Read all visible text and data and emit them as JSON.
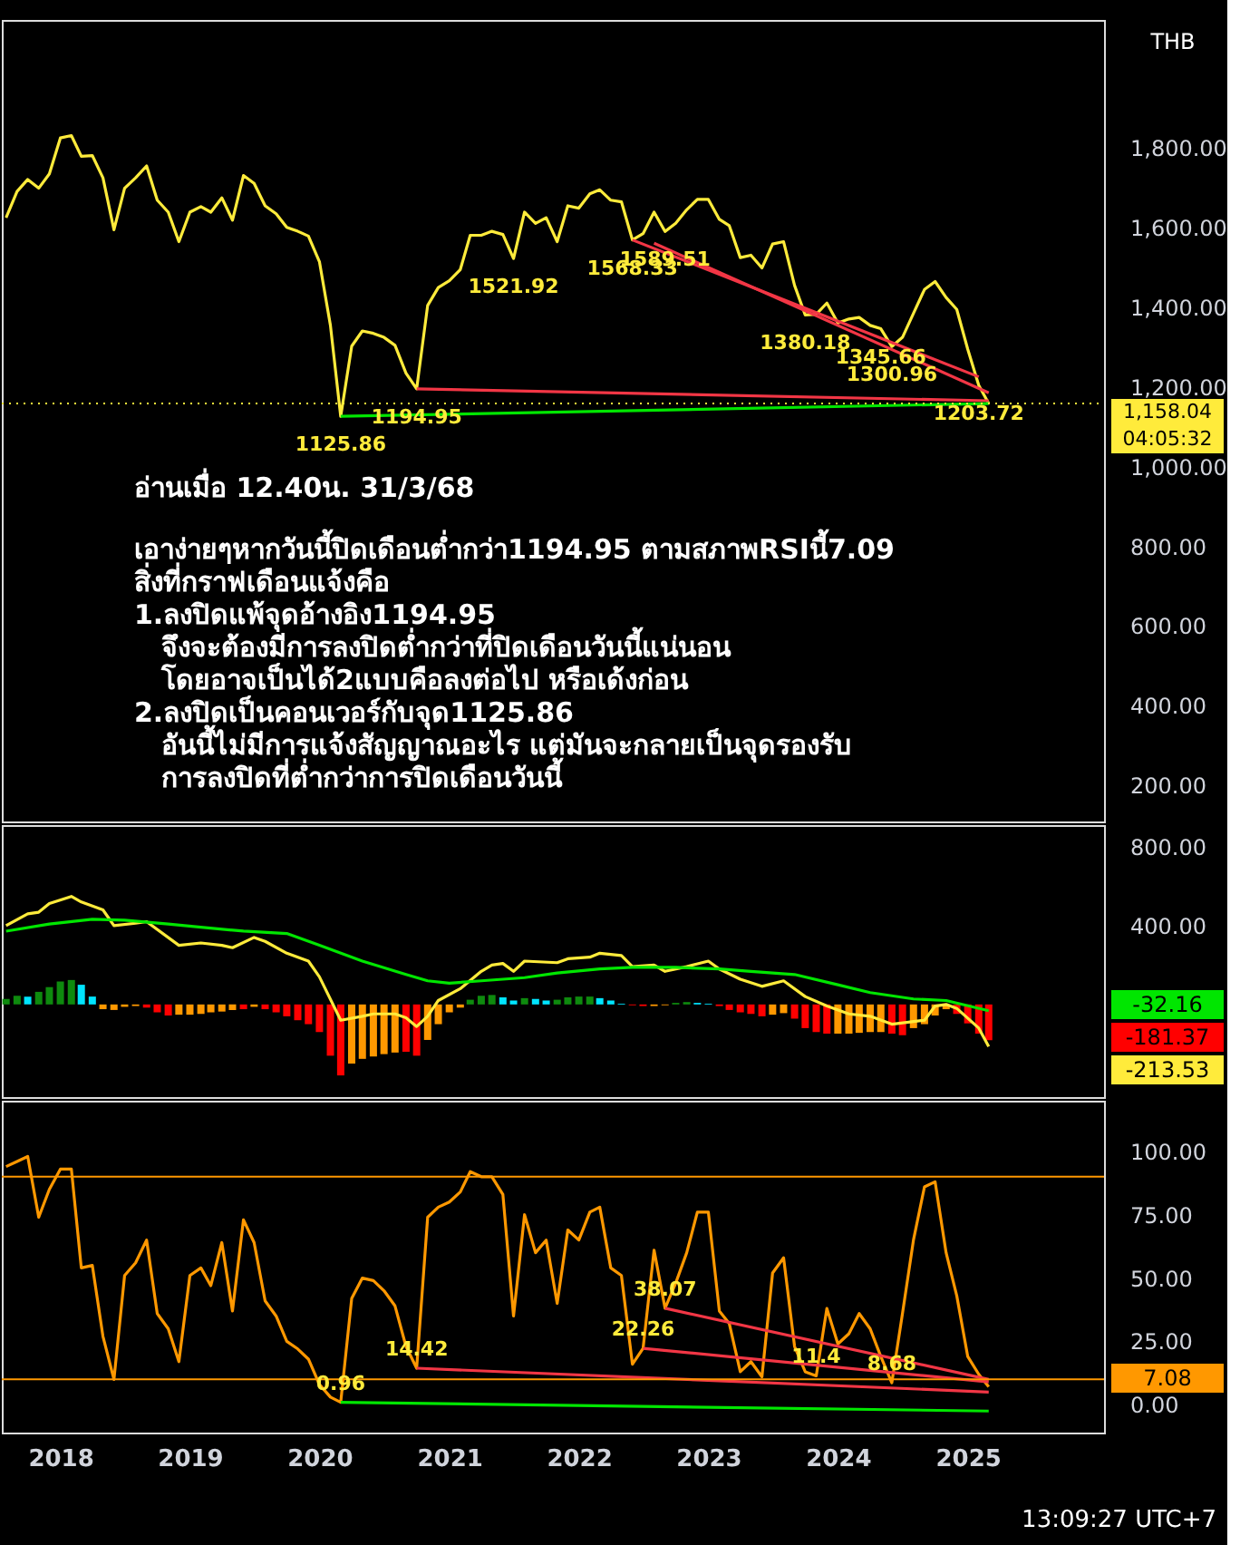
{
  "chart_data": [
    {
      "type": "line",
      "xlim": [
        "2017-07-20",
        "2026-01-20"
      ],
      "ylim": [
        110,
        2120
      ],
      "tick_labels": "y",
      "yticks": [
        {
          "value": 200,
          "label": "200.00"
        },
        {
          "value": 400,
          "label": "400.00"
        },
        {
          "value": 600,
          "label": "600.00"
        },
        {
          "value": 800,
          "label": "800.00"
        },
        {
          "value": 1000,
          "label": "1,000.00"
        },
        {
          "value": 1200,
          "label": "1,200.00"
        },
        {
          "value": 1400,
          "label": "1,400.00"
        },
        {
          "value": 1600,
          "label": "1,600.00"
        },
        {
          "value": 1800,
          "label": "1,800.00"
        }
      ],
      "x": [
        "2017-08",
        "2017-09",
        "2017-10",
        "2017-11",
        "2017-12",
        "2018-01",
        "2018-02",
        "2018-03",
        "2018-04",
        "2018-05",
        "2018-06",
        "2018-07",
        "2018-08",
        "2018-09",
        "2018-10",
        "2018-11",
        "2018-12",
        "2019-01",
        "2019-02",
        "2019-03",
        "2019-04",
        "2019-05",
        "2019-06",
        "2019-07",
        "2019-08",
        "2019-09",
        "2019-10",
        "2019-11",
        "2019-12",
        "2020-01",
        "2020-02",
        "2020-03",
        "2020-04",
        "2020-05",
        "2020-06",
        "2020-07",
        "2020-08",
        "2020-09",
        "2020-10",
        "2020-11",
        "2020-12",
        "2021-01",
        "2021-02",
        "2021-03",
        "2021-04",
        "2021-05",
        "2021-06",
        "2021-07",
        "2021-08",
        "2021-09",
        "2021-10",
        "2021-11",
        "2021-12",
        "2022-01",
        "2022-02",
        "2022-03",
        "2022-04",
        "2022-05",
        "2022-06",
        "2022-07",
        "2022-08",
        "2022-09",
        "2022-10",
        "2022-11",
        "2022-12",
        "2023-01",
        "2023-02",
        "2023-03",
        "2023-04",
        "2023-05",
        "2023-06",
        "2023-07",
        "2023-08",
        "2023-09",
        "2023-10",
        "2023-11",
        "2023-12",
        "2024-01",
        "2024-02",
        "2024-03",
        "2024-04",
        "2024-05",
        "2024-06",
        "2024-07",
        "2024-08",
        "2024-09",
        "2024-10",
        "2024-11",
        "2024-12",
        "2025-01",
        "2025-02",
        "2025-03"
      ],
      "series": [
        {
          "color": "#ffeb3b",
          "values": [
            1624,
            1690,
            1720,
            1698,
            1734,
            1824,
            1830,
            1778,
            1780,
            1724,
            1594,
            1698,
            1724,
            1754,
            1668,
            1638,
            1564,
            1638,
            1652,
            1638,
            1674,
            1618,
            1730,
            1710,
            1654,
            1634,
            1600,
            1590,
            1578,
            1514,
            1354,
            1125.86,
            1302,
            1340,
            1334,
            1324,
            1304,
            1234,
            1194.95,
            1404,
            1449,
            1466,
            1494,
            1580,
            1580,
            1590,
            1582,
            1521.92,
            1638,
            1610,
            1624,
            1564,
            1654,
            1648,
            1684,
            1694,
            1668,
            1664,
            1568.33,
            1584,
            1638,
            1589.51,
            1610,
            1644,
            1670,
            1670,
            1620,
            1604,
            1524,
            1530,
            1498,
            1558,
            1564,
            1454,
            1380.18,
            1382,
            1410,
            1360,
            1370,
            1374,
            1354,
            1345.66,
            1300.96,
            1324,
            1384,
            1444,
            1464,
            1424,
            1394,
            1294,
            1203.72,
            1158.04
          ]
        },
        {
          "type": "line",
          "color": "#f23645",
          "x": [
            "2020-10",
            "2025-03"
          ],
          "values": [
            1194.95,
            1165
          ]
        },
        {
          "type": "line",
          "color": "#f23645",
          "x": [
            "2022-06",
            "2025-02"
          ],
          "values": [
            1568.33,
            1225
          ]
        },
        {
          "type": "line",
          "color": "#f23645",
          "x": [
            "2022-08",
            "2025-03"
          ],
          "values": [
            1560,
            1185
          ]
        },
        {
          "type": "line",
          "color": "#00e600",
          "x": [
            "2020-03",
            "2025-03"
          ],
          "values": [
            1125.86,
            1158.04
          ]
        }
      ],
      "ref_lines": [
        {
          "axis": "y",
          "value": 1158.04,
          "label": "1,158.04",
          "color": "#ffeb3b",
          "line_style": "dotted"
        }
      ],
      "annotations": [
        "THB",
        "04:05:32",
        "อ่านเมื่อ 12.40น. 31/3/68",
        "เอาง่ายๆหากวันนี้ปิดเดือนต่ำกว่า1194.95 ตามสภาพRSIนี้7.09",
        "สิ่งที่กราฟเดือนแจ้งคือ",
        "1.ลงปิดแพ้จุดอ้างอิง1194.95",
        "จึงจะต้องมีการลงปิดต่ำกว่าที่ปิดเดือนวันนี้แน่นอน",
        "โดยอาจเป็นได้2แบบคือลงต่อไป หรือเด้งก่อน",
        "2.ลงปิดเป็นคอนเวอร์กับจุด1125.86",
        "อันนี้ไม่มีการแจ้งสัญญาณอะไร แต่มันจะกลายเป็นจุดรองรับ",
        "การลงปิดที่ต่ำกว่าการปิดเดือนวันนี้",
        {
          "text": "1125.86",
          "x": "2020-03",
          "y": 1125.86
        },
        {
          "text": "1194.95",
          "x": "2020-10",
          "y": 1194.95
        },
        {
          "text": "1521.92",
          "x": "2021-07",
          "y": 1521.92
        },
        {
          "text": "1568.33",
          "x": "2022-06",
          "y": 1568.33
        },
        {
          "text": "1589.51",
          "x": "2022-09",
          "y": 1589.51
        },
        {
          "text": "1380.18",
          "x": "2023-10",
          "y": 1380.18
        },
        {
          "text": "1345.66",
          "x": "2024-05",
          "y": 1345.66
        },
        {
          "text": "1300.96",
          "x": "2024-06",
          "y": 1300.96
        },
        {
          "text": "1203.72",
          "x": "2025-02",
          "y": 1203.72
        }
      ]
    },
    {
      "type": "bar",
      "xlim": [
        "2017-07-20",
        "2026-01-20"
      ],
      "ylim": [
        -470,
        910
      ],
      "tick_labels": "y",
      "yticks": [
        {
          "value": 400,
          "label": "400.00"
        },
        {
          "value": 800,
          "label": "800.00"
        }
      ],
      "x": [
        "2017-08",
        "2017-09",
        "2017-10",
        "2017-11",
        "2017-12",
        "2018-01",
        "2018-02",
        "2018-03",
        "2018-04",
        "2018-05",
        "2018-06",
        "2018-07",
        "2018-08",
        "2018-09",
        "2018-10",
        "2018-11",
        "2018-12",
        "2019-01",
        "2019-02",
        "2019-03",
        "2019-04",
        "2019-05",
        "2019-06",
        "2019-07",
        "2019-08",
        "2019-09",
        "2019-10",
        "2019-11",
        "2019-12",
        "2020-01",
        "2020-02",
        "2020-03",
        "2020-04",
        "2020-05",
        "2020-06",
        "2020-07",
        "2020-08",
        "2020-09",
        "2020-10",
        "2020-11",
        "2020-12",
        "2021-01",
        "2021-02",
        "2021-03",
        "2021-04",
        "2021-05",
        "2021-06",
        "2021-07",
        "2021-08",
        "2021-09",
        "2021-10",
        "2021-11",
        "2021-12",
        "2022-01",
        "2022-02",
        "2022-03",
        "2022-04",
        "2022-05",
        "2022-06",
        "2022-07",
        "2022-08",
        "2022-09",
        "2022-10",
        "2022-11",
        "2022-12",
        "2023-01",
        "2023-02",
        "2023-03",
        "2023-04",
        "2023-05",
        "2023-06",
        "2023-07",
        "2023-08",
        "2023-09",
        "2023-10",
        "2023-11",
        "2023-12",
        "2024-01",
        "2024-02",
        "2024-03",
        "2024-04",
        "2024-05",
        "2024-06",
        "2024-07",
        "2024-08",
        "2024-09",
        "2024-10",
        "2024-11",
        "2024-12",
        "2025-01",
        "2025-02",
        "2025-03"
      ],
      "series": [
        {
          "values": [
            28,
            44,
            40,
            64,
            88,
            116,
            124,
            100,
            40,
            -24,
            -28,
            -12,
            -8,
            -16,
            -40,
            -56,
            -52,
            -52,
            -48,
            -40,
            -36,
            -28,
            -24,
            -12,
            -24,
            -40,
            -60,
            -80,
            -100,
            -140,
            -260,
            -360,
            -300,
            -276,
            -264,
            -252,
            -244,
            -240,
            -260,
            -180,
            -100,
            -40,
            -16,
            24,
            44,
            48,
            36,
            20,
            32,
            28,
            20,
            24,
            36,
            40,
            40,
            32,
            20,
            4,
            -4,
            -8,
            -8,
            -4,
            8,
            12,
            8,
            4,
            -8,
            -28,
            -40,
            -48,
            -60,
            -52,
            -44,
            -72,
            -120,
            -140,
            -148,
            -148,
            -148,
            -144,
            -140,
            -140,
            -148,
            -156,
            -120,
            -100,
            -56,
            -24,
            -48,
            -96,
            -148,
            -181.37
          ],
          "colors": [
            "#0e8a0e",
            "#0e8a0e",
            "#00e5ff",
            "#0e8a0e",
            "#0e8a0e",
            "#0e8a0e",
            "#0e8a0e",
            "#00e5ff",
            "#00e5ff",
            "#ff9800",
            "#ff9800",
            "#ff9800",
            "#ff9800",
            "#ff0000",
            "#ff0000",
            "#ff0000",
            "#ff9800",
            "#ff9800",
            "#ff9800",
            "#ff9800",
            "#ff9800",
            "#ff9800",
            "#ff0000",
            "#ff9800",
            "#ff0000",
            "#ff0000",
            "#ff0000",
            "#ff0000",
            "#ff0000",
            "#ff0000",
            "#ff0000",
            "#ff0000",
            "#ff9800",
            "#ff9800",
            "#ff9800",
            "#ff9800",
            "#ff9800",
            "#ff0000",
            "#ff0000",
            "#ff9800",
            "#ff9800",
            "#ff9800",
            "#ff9800",
            "#0e8a0e",
            "#0e8a0e",
            "#0e8a0e",
            "#00e5ff",
            "#00e5ff",
            "#0e8a0e",
            "#00e5ff",
            "#00e5ff",
            "#0e8a0e",
            "#0e8a0e",
            "#0e8a0e",
            "#0e8a0e",
            "#00e5ff",
            "#00e5ff",
            "#00e5ff",
            "#ff0000",
            "#ff0000",
            "#ff9800",
            "#ff9800",
            "#0e8a0e",
            "#0e8a0e",
            "#00e5ff",
            "#00e5ff",
            "#ff0000",
            "#ff0000",
            "#ff0000",
            "#ff0000",
            "#ff0000",
            "#ff9800",
            "#ff9800",
            "#ff0000",
            "#ff0000",
            "#ff0000",
            "#ff0000",
            "#ff9800",
            "#ff9800",
            "#ff9800",
            "#ff9800",
            "#ff9800",
            "#ff0000",
            "#ff0000",
            "#ff9800",
            "#ff9800",
            "#ff9800",
            "#ff9800",
            "#ff0000",
            "#ff0000",
            "#ff0000",
            "#ff0000"
          ]
        },
        {
          "type": "line",
          "color": "#ffeb3b",
          "x": [
            "2017-08",
            "2017-10",
            "2017-11",
            "2017-12",
            "2018-02",
            "2018-03",
            "2018-05",
            "2018-06",
            "2018-08",
            "2018-09",
            "2018-12",
            "2019-02",
            "2019-04",
            "2019-05",
            "2019-07",
            "2019-08",
            "2019-10",
            "2019-12",
            "2020-01",
            "2020-03",
            "2020-05",
            "2020-06",
            "2020-08",
            "2020-09",
            "2020-10",
            "2020-11",
            "2020-12",
            "2021-02",
            "2021-04",
            "2021-05",
            "2021-06",
            "2021-07",
            "2021-08",
            "2021-11",
            "2021-12",
            "2022-02",
            "2022-03",
            "2022-05",
            "2022-06",
            "2022-08",
            "2022-09",
            "2022-11",
            "2023-01",
            "2023-02",
            "2023-04",
            "2023-06",
            "2023-08",
            "2023-10",
            "2023-12",
            "2024-02",
            "2024-04",
            "2024-06",
            "2024-09",
            "2024-10",
            "2024-11",
            "2024-12",
            "2025-02",
            "2025-03"
          ],
          "values": [
            400,
            460,
            468,
            512,
            548,
            520,
            480,
            400,
            412,
            420,
            300,
            312,
            300,
            288,
            340,
            320,
            260,
            220,
            140,
            -80,
            -60,
            -48,
            -48,
            -68,
            -112,
            -60,
            20,
            80,
            168,
            200,
            208,
            168,
            220,
            212,
            232,
            240,
            260,
            248,
            192,
            200,
            168,
            192,
            220,
            180,
            128,
            92,
            120,
            40,
            -8,
            -48,
            -60,
            -100,
            -80,
            -8,
            0,
            -20,
            -120,
            -213.53
          ]
        },
        {
          "type": "line",
          "color": "#00e600",
          "x": [
            "2017-08",
            "2017-12",
            "2018-04",
            "2018-07",
            "2018-11",
            "2019-02",
            "2019-06",
            "2019-10",
            "2020-01",
            "2020-05",
            "2020-09",
            "2020-11",
            "2021-01",
            "2021-04",
            "2021-08",
            "2021-11",
            "2022-03",
            "2022-06",
            "2022-10",
            "2023-02",
            "2023-05",
            "2023-09",
            "2024-01",
            "2024-04",
            "2024-08",
            "2024-11",
            "2025-03"
          ],
          "values": [
            372,
            408,
            432,
            428,
            408,
            392,
            372,
            360,
            300,
            220,
            152,
            120,
            108,
            120,
            136,
            160,
            180,
            188,
            188,
            180,
            168,
            152,
            100,
            60,
            28,
            20,
            -32.16
          ]
        }
      ],
      "annotations": [
        "-32.16",
        "-181.37",
        "-213.53"
      ]
    },
    {
      "type": "line",
      "xlim": [
        "2017-07-20",
        "2026-01-20"
      ],
      "ylim": [
        -11,
        120
      ],
      "xticks": [
        "2018",
        "2019",
        "2020",
        "2021",
        "2022",
        "2023",
        "2024",
        "2025"
      ],
      "yticks": [
        {
          "value": 0,
          "label": "0.00"
        },
        {
          "value": 25,
          "label": "25.00"
        },
        {
          "value": 50,
          "label": "50.00"
        },
        {
          "value": 75,
          "label": "75.00"
        },
        {
          "value": 100,
          "label": "100.00"
        }
      ],
      "x": [
        "2017-08",
        "2017-09",
        "2017-10",
        "2017-11",
        "2017-12",
        "2018-01",
        "2018-02",
        "2018-03",
        "2018-04",
        "2018-05",
        "2018-06",
        "2018-07",
        "2018-08",
        "2018-09",
        "2018-10",
        "2018-11",
        "2018-12",
        "2019-01",
        "2019-02",
        "2019-03",
        "2019-04",
        "2019-05",
        "2019-06",
        "2019-07",
        "2019-08",
        "2019-09",
        "2019-10",
        "2019-11",
        "2019-12",
        "2020-01",
        "2020-02",
        "2020-03",
        "2020-04",
        "2020-05",
        "2020-06",
        "2020-07",
        "2020-08",
        "2020-09",
        "2020-10",
        "2020-11",
        "2020-12",
        "2021-01",
        "2021-02",
        "2021-03",
        "2021-04",
        "2021-05",
        "2021-06",
        "2021-07",
        "2021-08",
        "2021-09",
        "2021-10",
        "2021-11",
        "2021-12",
        "2022-01",
        "2022-02",
        "2022-03",
        "2022-04",
        "2022-05",
        "2022-06",
        "2022-07",
        "2022-08",
        "2022-09",
        "2022-10",
        "2022-11",
        "2022-12",
        "2023-01",
        "2023-02",
        "2023-03",
        "2023-04",
        "2023-05",
        "2023-06",
        "2023-07",
        "2023-08",
        "2023-09",
        "2023-10",
        "2023-11",
        "2023-12",
        "2024-01",
        "2024-02",
        "2024-03",
        "2024-04",
        "2024-05",
        "2024-06",
        "2024-07",
        "2024-08",
        "2024-09",
        "2024-10",
        "2024-11",
        "2024-12",
        "2025-01",
        "2025-02",
        "2025-03"
      ],
      "series": [
        {
          "color": "#ff9800",
          "values": [
            94,
            96,
            98,
            74,
            85,
            93,
            93,
            54,
            55,
            27,
            10,
            51,
            56,
            65,
            36,
            30,
            17,
            51,
            54,
            47,
            64,
            37,
            73,
            64,
            41,
            35,
            25,
            22,
            18,
            8,
            3,
            0.96,
            42,
            50,
            49,
            45,
            39,
            23,
            14.42,
            74,
            78,
            80,
            84,
            92,
            90,
            90,
            83,
            35,
            75,
            60,
            65,
            40,
            69,
            65,
            76,
            78,
            54,
            51,
            16,
            22.26,
            61,
            38.07,
            48,
            60,
            76,
            76,
            37,
            32,
            13,
            17,
            11,
            52,
            58,
            23,
            13,
            11.4,
            38,
            24,
            28,
            36,
            30,
            19,
            8.68,
            36,
            65,
            86,
            88,
            60,
            43,
            19,
            12,
            7.08
          ]
        },
        {
          "type": "line",
          "color": "#f23645",
          "x": [
            "2020-10",
            "2025-03"
          ],
          "values": [
            14.42,
            5
          ]
        },
        {
          "type": "line",
          "color": "#f23645",
          "x": [
            "2022-07",
            "2025-03"
          ],
          "values": [
            22.26,
            9
          ]
        },
        {
          "type": "line",
          "color": "#f23645",
          "x": [
            "2022-09",
            "2025-03"
          ],
          "values": [
            38.07,
            10
          ]
        },
        {
          "type": "line",
          "color": "#00e600",
          "x": [
            "2020-03",
            "2025-03"
          ],
          "values": [
            0.96,
            -2.5
          ]
        }
      ],
      "ref_lines": [
        {
          "axis": "y",
          "value": 90,
          "color": "#ff9800",
          "line_style": "solid"
        },
        {
          "axis": "y",
          "value": 10,
          "color": "#ff9800",
          "line_style": "solid"
        }
      ],
      "annotations": [
        "13:09:27 UTC+7",
        {
          "text": "0.96",
          "x": "2020-03",
          "y": 0.96
        },
        {
          "text": "14.42",
          "x": "2020-10",
          "y": 14.42
        },
        {
          "text": "22.26",
          "x": "2022-07",
          "y": 22.26
        },
        {
          "text": "38.07",
          "x": "2022-09",
          "y": 38.07
        },
        {
          "text": "11.4",
          "x": "2023-11",
          "y": 11.4
        },
        {
          "text": "8.68",
          "x": "2024-06",
          "y": 8.68
        },
        "7.08"
      ]
    }
  ]
}
